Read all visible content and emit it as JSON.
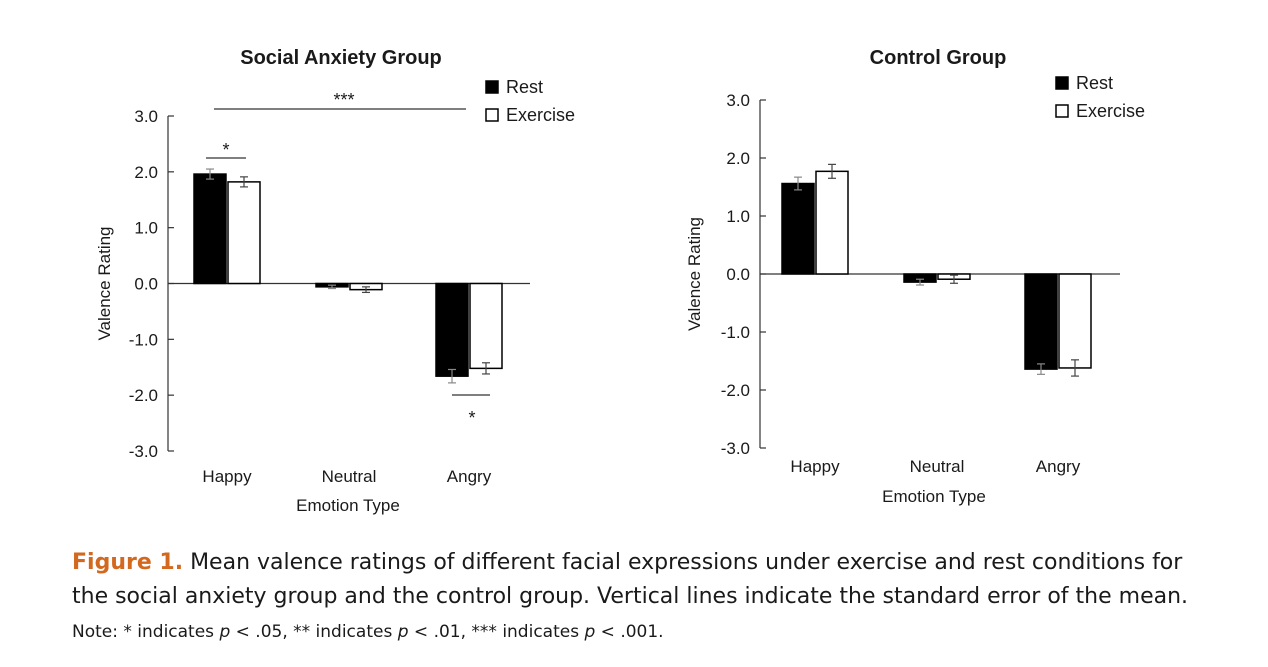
{
  "chart_data": [
    {
      "type": "bar",
      "title": "Social Anxiety Group",
      "xlabel": "Emotion Type",
      "ylabel": "Valence Rating",
      "categories": [
        "Happy",
        "Neutral",
        "Angry"
      ],
      "ylim": [
        -3.0,
        3.0
      ],
      "yticks": [
        "3.0",
        "2.0",
        "1.0",
        "0.0",
        "-1.0",
        "-2.0",
        "-3.0"
      ],
      "legend_position": "top-right",
      "series": [
        {
          "name": "Rest",
          "values": [
            1.96,
            -0.06,
            -1.66
          ],
          "errors": [
            0.09,
            0.03,
            0.12
          ],
          "fill": "#000000"
        },
        {
          "name": "Exercise",
          "values": [
            1.82,
            -0.11,
            -1.52
          ],
          "errors": [
            0.09,
            0.05,
            0.1
          ],
          "fill": "#ffffff"
        }
      ],
      "annotations": [
        {
          "label": "***",
          "span": "Happy-Angry, above bars"
        },
        {
          "label": "*",
          "span": "Happy Rest vs Exercise"
        },
        {
          "label": "*",
          "span": "Angry Rest vs Exercise, below bars"
        }
      ]
    },
    {
      "type": "bar",
      "title": "Control Group",
      "xlabel": "Emotion Type",
      "ylabel": "Valence Rating",
      "categories": [
        "Happy",
        "Neutral",
        "Angry"
      ],
      "ylim": [
        -3.0,
        3.0
      ],
      "yticks": [
        "3.0",
        "2.0",
        "1.0",
        "0.0",
        "-1.0",
        "-2.0",
        "-3.0"
      ],
      "legend_position": "top-right",
      "series": [
        {
          "name": "Rest",
          "values": [
            1.56,
            -0.14,
            -1.64
          ],
          "errors": [
            0.11,
            0.05,
            0.09
          ],
          "fill": "#000000"
        },
        {
          "name": "Exercise",
          "values": [
            1.77,
            -0.09,
            -1.62
          ],
          "errors": [
            0.12,
            0.07,
            0.14
          ],
          "fill": "#ffffff"
        }
      ],
      "annotations": []
    }
  ],
  "caption": {
    "label": "Figure 1.",
    "text": " Mean valence ratings of different facial expressions under exercise and rest conditions for the social anxiety group and the control group. Vertical lines indicate the standard error of the mean."
  },
  "note": {
    "part1": "Note: * indicates ",
    "p1": "p",
    "part2": " < .05, ** indicates ",
    "p2": "p",
    "part3": " < .01, *** indicates ",
    "p3": "p",
    "part4": " < .001."
  }
}
